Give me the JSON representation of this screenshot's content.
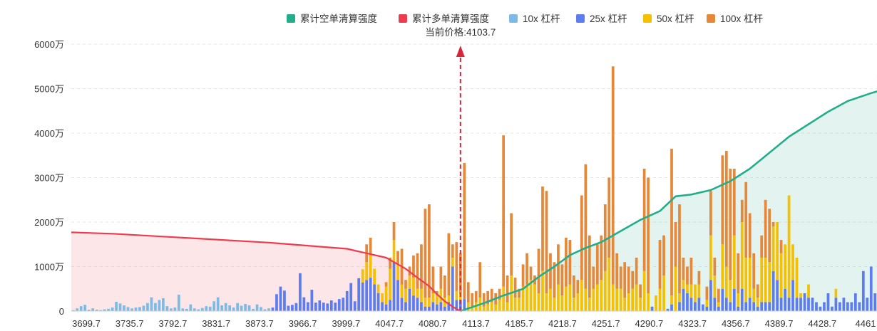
{
  "chart_data": {
    "type": "bar",
    "unit": "万",
    "ylim": [
      0,
      6000
    ],
    "yticks": [
      "0",
      "1000万",
      "2000万",
      "3000万",
      "4000万",
      "5000万",
      "6000万"
    ],
    "ytick_values": [
      0,
      1000,
      2000,
      3000,
      4000,
      5000,
      6000
    ],
    "xticks": [
      "3699.7",
      "3735.7",
      "3792.7",
      "3831.7",
      "3873.7",
      "3966.7",
      "3999.7",
      "4047.7",
      "4080.7",
      "4113.7",
      "4185.7",
      "4218.7",
      "4251.7",
      "4290.7",
      "4323.7",
      "4356.7",
      "4389.7",
      "4428.7",
      "4461"
    ],
    "current_price_label": "当前价格:4103.7",
    "current_price_index": 99,
    "grid": "horizontal-dashed",
    "legend_position": "top-center",
    "colors": {
      "short_cum": "#23ad8b",
      "long_cum": "#ee3b4e",
      "x10": "#7cbbe6",
      "x25": "#5c7cf0",
      "x50": "#f4c000",
      "x100": "#e5883a",
      "marker": "#d9253a"
    },
    "series": [
      {
        "key": "short_cum",
        "name": "累计空单清算强度",
        "kind": "line"
      },
      {
        "key": "long_cum",
        "name": "累计多单清算强度",
        "kind": "line"
      },
      {
        "key": "x10",
        "name": "10x 杠杆",
        "kind": "bar"
      },
      {
        "key": "x25",
        "name": "25x 杠杆",
        "kind": "bar"
      },
      {
        "key": "x50",
        "name": "50x 杠杆",
        "kind": "bar"
      },
      {
        "key": "x100",
        "name": "100x 杠杆",
        "kind": "bar"
      }
    ],
    "bars": [
      [
        20,
        0,
        0,
        0
      ],
      [
        60,
        0,
        0,
        0
      ],
      [
        110,
        0,
        0,
        0
      ],
      [
        140,
        0,
        0,
        0
      ],
      [
        30,
        0,
        0,
        0
      ],
      [
        60,
        0,
        0,
        0
      ],
      [
        30,
        0,
        0,
        0
      ],
      [
        20,
        0,
        0,
        0
      ],
      [
        40,
        0,
        0,
        0
      ],
      [
        50,
        0,
        0,
        0
      ],
      [
        80,
        0,
        0,
        0
      ],
      [
        210,
        0,
        0,
        0
      ],
      [
        170,
        0,
        0,
        0
      ],
      [
        130,
        0,
        0,
        0
      ],
      [
        90,
        0,
        0,
        0
      ],
      [
        60,
        0,
        0,
        0
      ],
      [
        80,
        0,
        0,
        0
      ],
      [
        90,
        0,
        0,
        0
      ],
      [
        120,
        0,
        0,
        0
      ],
      [
        180,
        0,
        0,
        0
      ],
      [
        310,
        0,
        0,
        0
      ],
      [
        180,
        0,
        0,
        0
      ],
      [
        250,
        0,
        0,
        0
      ],
      [
        290,
        0,
        0,
        0
      ],
      [
        110,
        0,
        0,
        0
      ],
      [
        60,
        0,
        0,
        0
      ],
      [
        80,
        0,
        0,
        0
      ],
      [
        370,
        0,
        0,
        0
      ],
      [
        60,
        0,
        0,
        0
      ],
      [
        50,
        0,
        0,
        0
      ],
      [
        150,
        0,
        0,
        0
      ],
      [
        60,
        0,
        0,
        0
      ],
      [
        40,
        0,
        0,
        0
      ],
      [
        70,
        0,
        0,
        0
      ],
      [
        110,
        0,
        0,
        0
      ],
      [
        100,
        0,
        0,
        0
      ],
      [
        220,
        0,
        0,
        0
      ],
      [
        310,
        0,
        0,
        0
      ],
      [
        130,
        0,
        0,
        0
      ],
      [
        180,
        0,
        0,
        0
      ],
      [
        130,
        0,
        0,
        0
      ],
      [
        80,
        0,
        0,
        0
      ],
      [
        180,
        0,
        0,
        0
      ],
      [
        120,
        0,
        0,
        0
      ],
      [
        160,
        0,
        0,
        0
      ],
      [
        130,
        0,
        0,
        0
      ],
      [
        50,
        0,
        0,
        0
      ],
      [
        150,
        0,
        0,
        0
      ],
      [
        90,
        0,
        0,
        0
      ],
      [
        40,
        0,
        0,
        0
      ],
      [
        60,
        0,
        0,
        0
      ],
      [
        0,
        80,
        0,
        0
      ],
      [
        0,
        380,
        0,
        0
      ],
      [
        0,
        550,
        0,
        0
      ],
      [
        0,
        460,
        0,
        0
      ],
      [
        0,
        120,
        0,
        0
      ],
      [
        0,
        140,
        0,
        0
      ],
      [
        0,
        180,
        0,
        0
      ],
      [
        0,
        850,
        0,
        0
      ],
      [
        0,
        310,
        0,
        0
      ],
      [
        0,
        200,
        0,
        0
      ],
      [
        0,
        480,
        0,
        0
      ],
      [
        0,
        190,
        0,
        0
      ],
      [
        0,
        240,
        0,
        0
      ],
      [
        0,
        190,
        0,
        0
      ],
      [
        0,
        170,
        0,
        0
      ],
      [
        0,
        240,
        0,
        0
      ],
      [
        0,
        190,
        0,
        0
      ],
      [
        0,
        270,
        0,
        0
      ],
      [
        0,
        300,
        0,
        0
      ],
      [
        0,
        450,
        0,
        0
      ],
      [
        0,
        630,
        0,
        0
      ],
      [
        0,
        220,
        0,
        0
      ],
      [
        0,
        740,
        0,
        0
      ],
      [
        0,
        640,
        300,
        0
      ],
      [
        0,
        700,
        400,
        400
      ],
      [
        0,
        750,
        500,
        400
      ],
      [
        0,
        600,
        350,
        0
      ],
      [
        0,
        400,
        200,
        0
      ],
      [
        0,
        200,
        200,
        0
      ],
      [
        0,
        150,
        400,
        100
      ],
      [
        0,
        250,
        700,
        250
      ],
      [
        0,
        1100,
        500,
        400
      ],
      [
        0,
        700,
        350,
        300
      ],
      [
        0,
        300,
        300,
        800
      ],
      [
        0,
        200,
        300,
        200
      ],
      [
        0,
        500,
        300,
        200
      ],
      [
        0,
        350,
        400,
        500
      ],
      [
        0,
        300,
        200,
        800
      ],
      [
        0,
        200,
        300,
        1000
      ],
      [
        0,
        100,
        200,
        2000
      ],
      [
        0,
        100,
        200,
        2100
      ],
      [
        0,
        200,
        200,
        600
      ],
      [
        0,
        150,
        200,
        100
      ],
      [
        0,
        200,
        300,
        500
      ],
      [
        0,
        100,
        200,
        500
      ],
      [
        0,
        200,
        150,
        1400
      ],
      [
        0,
        1000,
        200,
        300
      ],
      [
        0,
        250,
        200,
        1100
      ],
      [
        0,
        250,
        150,
        900
      ],
      [
        0,
        270,
        0,
        3060
      ],
      [
        0,
        0,
        200,
        450
      ],
      [
        0,
        0,
        100,
        300
      ],
      [
        0,
        0,
        200,
        250
      ],
      [
        0,
        0,
        300,
        800
      ],
      [
        0,
        0,
        100,
        300
      ],
      [
        0,
        0,
        150,
        300
      ],
      [
        0,
        0,
        200,
        300
      ],
      [
        0,
        0,
        150,
        250
      ],
      [
        0,
        0,
        250,
        250
      ],
      [
        0,
        0,
        550,
        3400
      ],
      [
        0,
        0,
        200,
        600
      ],
      [
        0,
        0,
        800,
        1400
      ],
      [
        0,
        0,
        300,
        450
      ],
      [
        0,
        0,
        300,
        200
      ],
      [
        0,
        0,
        550,
        500
      ],
      [
        0,
        0,
        600,
        700
      ],
      [
        0,
        0,
        700,
        300
      ],
      [
        0,
        0,
        600,
        200
      ],
      [
        0,
        0,
        400,
        1000
      ],
      [
        0,
        0,
        900,
        1900
      ],
      [
        0,
        0,
        400,
        2300
      ],
      [
        0,
        0,
        500,
        800
      ],
      [
        0,
        0,
        300,
        800
      ],
      [
        0,
        0,
        600,
        900
      ],
      [
        0,
        0,
        350,
        700
      ],
      [
        0,
        0,
        550,
        1100
      ],
      [
        0,
        0,
        600,
        1000
      ],
      [
        0,
        0,
        300,
        500
      ],
      [
        0,
        0,
        400,
        300
      ],
      [
        0,
        0,
        700,
        1900
      ],
      [
        0,
        0,
        500,
        2800
      ],
      [
        0,
        0,
        300,
        1400
      ],
      [
        0,
        0,
        500,
        500
      ],
      [
        0,
        0,
        600,
        900
      ],
      [
        0,
        0,
        700,
        1000
      ],
      [
        0,
        0,
        900,
        1500
      ],
      [
        0,
        0,
        1200,
        1800
      ],
      [
        0,
        0,
        600,
        4900
      ],
      [
        0,
        0,
        500,
        800
      ],
      [
        0,
        0,
        500,
        500
      ],
      [
        0,
        0,
        300,
        800
      ],
      [
        0,
        0,
        400,
        600
      ],
      [
        0,
        0,
        500,
        400
      ],
      [
        0,
        0,
        600,
        600
      ],
      [
        0,
        0,
        300,
        300
      ],
      [
        0,
        0,
        900,
        2300
      ],
      [
        0,
        0,
        400,
        2600
      ],
      [
        0,
        100,
        0,
        0
      ],
      [
        0,
        0,
        350,
        0
      ],
      [
        0,
        0,
        500,
        1100
      ],
      [
        0,
        0,
        800,
        900
      ],
      [
        0,
        50,
        0,
        0
      ],
      [
        0,
        150,
        200,
        3300
      ],
      [
        0,
        0,
        1000,
        1000
      ],
      [
        0,
        200,
        200,
        2000
      ],
      [
        0,
        500,
        200,
        500
      ],
      [
        0,
        400,
        200,
        400
      ],
      [
        0,
        300,
        300,
        600
      ],
      [
        0,
        200,
        400,
        0
      ],
      [
        0,
        300,
        300,
        300
      ],
      [
        0,
        150,
        0,
        0
      ],
      [
        0,
        100,
        150,
        300
      ],
      [
        0,
        700,
        1000,
        1000
      ],
      [
        0,
        300,
        500,
        400
      ],
      [
        0,
        100,
        100,
        300
      ],
      [
        0,
        500,
        1000,
        2000
      ],
      [
        0,
        300,
        700,
        2600
      ],
      [
        0,
        200,
        500,
        2500
      ],
      [
        0,
        500,
        1200,
        1500
      ],
      [
        0,
        100,
        300,
        900
      ],
      [
        0,
        500,
        1500,
        500
      ],
      [
        0,
        200,
        1000,
        1700
      ],
      [
        0,
        300,
        900,
        1000
      ],
      [
        0,
        200,
        300,
        800
      ],
      [
        0,
        100,
        200,
        300
      ],
      [
        0,
        200,
        1000,
        500
      ],
      [
        0,
        200,
        1000,
        1300
      ],
      [
        0,
        200,
        900,
        1200
      ],
      [
        0,
        900,
        1000,
        100
      ],
      [
        0,
        700,
        1300,
        0
      ],
      [
        0,
        300,
        1000,
        300
      ],
      [
        0,
        500,
        1000,
        0
      ],
      [
        0,
        300,
        2300,
        0
      ],
      [
        0,
        700,
        800,
        0
      ],
      [
        0,
        300,
        900,
        0
      ],
      [
        0,
        300,
        100,
        0
      ],
      [
        0,
        400,
        0,
        0
      ],
      [
        0,
        300,
        300,
        0
      ],
      [
        0,
        300,
        0,
        0
      ],
      [
        0,
        200,
        0,
        0
      ],
      [
        0,
        100,
        0,
        0
      ],
      [
        0,
        200,
        0,
        0
      ],
      [
        0,
        400,
        0,
        0
      ],
      [
        0,
        100,
        0,
        0
      ],
      [
        0,
        300,
        200,
        0
      ],
      [
        0,
        200,
        0,
        0
      ],
      [
        0,
        300,
        0,
        0
      ],
      [
        0,
        200,
        0,
        0
      ],
      [
        0,
        200,
        0,
        0
      ],
      [
        0,
        400,
        0,
        0
      ],
      [
        0,
        200,
        0,
        0
      ],
      [
        0,
        900,
        0,
        0
      ],
      [
        0,
        300,
        0,
        0
      ],
      [
        0,
        1000,
        0,
        0
      ],
      [
        0,
        400,
        0,
        0
      ]
    ],
    "long_cum": {
      "x": [
        0,
        10,
        30,
        50,
        70,
        80,
        85,
        88,
        91,
        93,
        95,
        97,
        99
      ],
      "y": [
        1770,
        1740,
        1640,
        1540,
        1400,
        1200,
        950,
        750,
        560,
        380,
        220,
        100,
        0
      ]
    },
    "short_cum": {
      "x": [
        99,
        105,
        110,
        115,
        119,
        123,
        127,
        131,
        135,
        140,
        145,
        150,
        154,
        158,
        163,
        168,
        173,
        178,
        183,
        188,
        193,
        198,
        204,
        210,
        216,
        221,
        226
      ],
      "y": [
        0,
        180,
        350,
        500,
        770,
        1000,
        1260,
        1420,
        1550,
        1800,
        2050,
        2250,
        2580,
        2620,
        2720,
        2920,
        3200,
        3560,
        3920,
        4200,
        4480,
        4720,
        4900,
        5050,
        5100,
        5180,
        5290
      ]
    }
  }
}
